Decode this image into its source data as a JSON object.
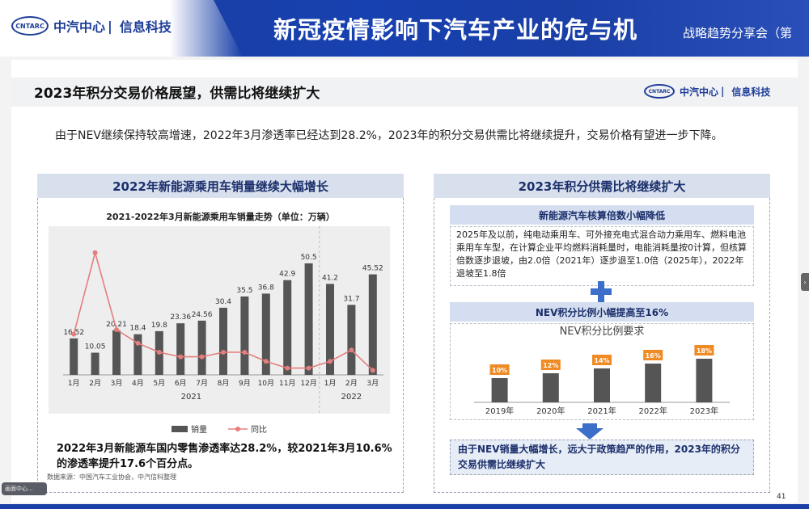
{
  "banner": {
    "logo_mark": "CNTARC",
    "logo_text": "中汽中心",
    "logo_sep": "|",
    "logo_sub": "信息科技",
    "title": "新冠疫情影响下汽车产业的危与机",
    "subtitle": "战略趋势分享会（第"
  },
  "slide": {
    "title": "2023年积分交易价格展望，供需比将继续扩大",
    "logo_mark": "CNTARC",
    "logo_text": "中汽中心",
    "logo_sep": "|",
    "logo_sub": "信息科技",
    "intro": "由于NEV继续保持较高增速，2022年3月渗透率已经达到28.2%，2023年的积分交易供需比将继续提升，交易价格有望进一步下降。",
    "page_number": "41"
  },
  "left_panel": {
    "heading": "2022年新能源乘用车销量继续大幅增长",
    "chart_title": "2021-2022年3月新能源乘用车销量走势（单位：万辆）",
    "conclusion": "2022年3月新能源车国内零售渗透率达28.2%，较2021年3月10.6%的渗透率提升17.6个百分点。",
    "source": "数据来源：中国汽车工业协会，中汽信科整理"
  },
  "chart_data": [
    {
      "type": "bar",
      "title": "2021-2022年3月新能源乘用车销量走势（单位：万辆）",
      "categories": [
        "1月",
        "2月",
        "3月",
        "4月",
        "5月",
        "6月",
        "7月",
        "8月",
        "9月",
        "10月",
        "11月",
        "12月",
        "1月",
        "2月",
        "3月"
      ],
      "groups": [
        {
          "label": "2021",
          "span": 12
        },
        {
          "label": "2022",
          "span": 3
        }
      ],
      "series": [
        {
          "name": "销量",
          "kind": "bar",
          "color": "#555555",
          "values": [
            16.52,
            10.05,
            20.21,
            18.4,
            19.8,
            23.36,
            24.56,
            30.4,
            35.5,
            36.8,
            42.9,
            50.5,
            41.2,
            31.7,
            45.52
          ]
        },
        {
          "name": "同比",
          "kind": "line",
          "color": "#e57d7d",
          "values": [
            9,
            27,
            10,
            7,
            5,
            4,
            4,
            5,
            5,
            3,
            1.5,
            1.5,
            3,
            5.5,
            1
          ]
        }
      ],
      "ylim": [
        0,
        60
      ],
      "legend": "bottom",
      "grid": false
    },
    {
      "type": "bar",
      "title": "NEV积分比例要求",
      "categories": [
        "2019年",
        "2020年",
        "2021年",
        "2022年",
        "2023年"
      ],
      "values": [
        10,
        12,
        14,
        16,
        18
      ],
      "value_labels": [
        "10%",
        "12%",
        "14%",
        "16%",
        "18%"
      ],
      "ylim": [
        0,
        20
      ],
      "bar_color": "#555555",
      "label_color": "#f08a24"
    }
  ],
  "right_panel": {
    "heading": "2023年积分供需比将继续扩大",
    "block1_title": "新能源汽车核算倍数小幅降低",
    "block1_text": "2025年及以前，纯电动乘用车、可外接充电式混合动力乘用车、燃料电池乘用车车型，在计算企业平均燃料消耗量时，电能消耗量按0计算，但核算倍数逐步退坡，由2.0倍（2021年）逐步退至1.0倍（2025年），2022年退坡至1.8倍",
    "block2_title": "NEV积分比例小幅提高至16%",
    "block3_text": "由于NEV销量大幅增长，远大于政策趋严的作用，2023年的积分交易供需比继续扩大"
  },
  "overlay": {
    "side_tab": "›",
    "corner_badge": "画面中心..."
  },
  "colors": {
    "brand_blue": "#1a3fa6",
    "panel_header": "#d8e0ee",
    "line_red": "#e57d7d",
    "label_orange": "#f08a24"
  },
  "icons": [
    "plus-icon",
    "down-arrow-icon",
    "logo-icon"
  ]
}
